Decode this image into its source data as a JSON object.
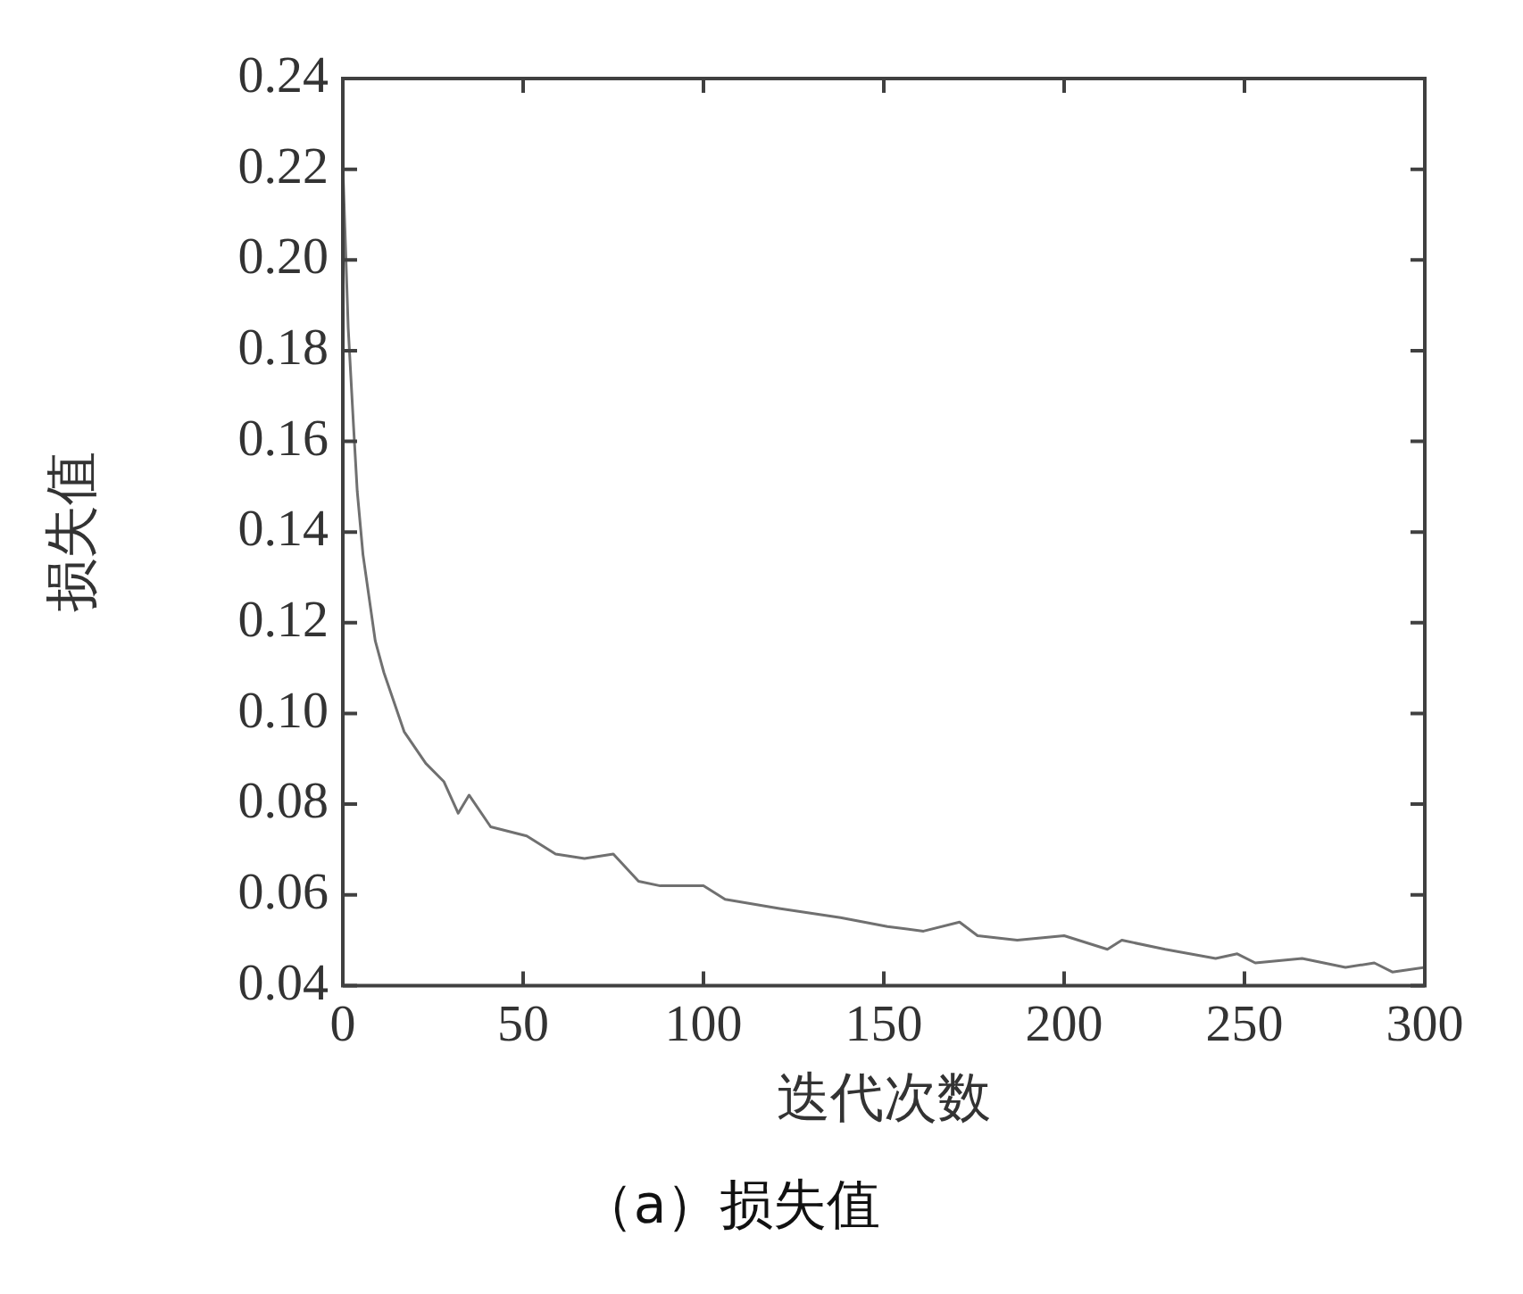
{
  "chart_data": {
    "type": "line",
    "title": "（a）损失值",
    "xlabel": "迭代次数",
    "ylabel": "损失值",
    "xlim": [
      0,
      300
    ],
    "xticks": [
      0,
      50,
      100,
      150,
      200,
      250,
      300
    ],
    "ylim": [
      0.04,
      0.24
    ],
    "yticks": [
      {
        "value": 0.04,
        "label": "0.04"
      },
      {
        "value": 0.06,
        "label": "0.06"
      },
      {
        "value": 0.08,
        "label": "0.08"
      },
      {
        "value": 0.1,
        "label": "0.10"
      },
      {
        "value": 0.12,
        "label": "0.12"
      },
      {
        "value": 0.14,
        "label": "0.14"
      },
      {
        "value": 0.16,
        "label": "0.16"
      },
      {
        "value": 0.18,
        "label": "0.18"
      },
      {
        "value": 0.2,
        "label": "0.20"
      },
      {
        "value": 0.22,
        "label": "0.22"
      },
      {
        "value": 0.24,
        "label": "0.24"
      }
    ],
    "grid": false,
    "legend": false,
    "marker": "none",
    "line_style": "solid",
    "series": [
      {
        "color": "#707070",
        "x": [
          0,
          1.5,
          3,
          4,
          5.6,
          9,
          11.4,
          17,
          23,
          28,
          32,
          35,
          41,
          51,
          59,
          67,
          75,
          82,
          88,
          94,
          100,
          106,
          121,
          138,
          151,
          161,
          171,
          176,
          187,
          200,
          212,
          216,
          228,
          242,
          248,
          253,
          266,
          278,
          286,
          291,
          300
        ],
        "values": [
          0.221,
          0.185,
          0.163,
          0.149,
          0.135,
          0.116,
          0.109,
          0.096,
          0.089,
          0.085,
          0.078,
          0.082,
          0.075,
          0.073,
          0.069,
          0.068,
          0.069,
          0.063,
          0.062,
          0.062,
          0.062,
          0.059,
          0.057,
          0.055,
          0.053,
          0.052,
          0.054,
          0.051,
          0.05,
          0.051,
          0.048,
          0.05,
          0.048,
          0.046,
          0.047,
          0.045,
          0.046,
          0.044,
          0.045,
          0.043,
          0.044
        ]
      }
    ]
  }
}
